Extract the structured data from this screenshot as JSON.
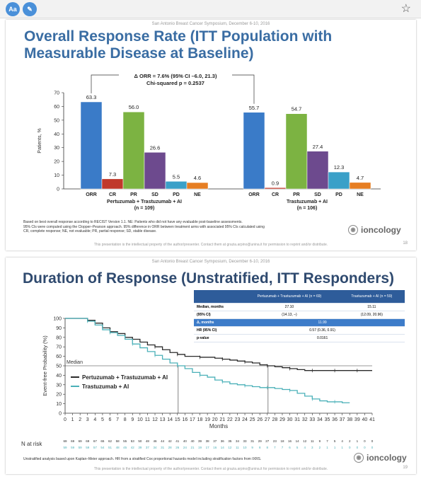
{
  "toolbar": {
    "aa_label": "Aa",
    "pen_icon": "pencil-icon",
    "star_icon": "star-icon"
  },
  "slide1": {
    "header": "San Antonio Breast Cancer Symposium, December 6-10, 2016",
    "title": "Overall Response Rate (ITT Population with Measurable Disease at Baseline)",
    "annotation_line1": "Δ ORR = 7.6% (95% CI –6.0, 21.3)",
    "annotation_line2": "Chi-squared p = 0.2537",
    "footnote_lines": [
      "Based on best overall response according to RECIST Version 1.1. NE: Patients who did not have any evaluable post-baseline assessments.",
      "95% CIs were computed using the Clopper–Pearson approach. 95% difference in ORR between treatment arms with associated 95% CIs calculated using",
      "CR, complete response; NE, not evaluable; PR, partial response; SD, stable disease."
    ],
    "footer": "This presentation is the intellectual property of the author/presenter. Contact them at grazia.arpino@unina.it for permission to reprint and/or distribute.",
    "page_number": "18",
    "watermark": "ioncology"
  },
  "slide2": {
    "header": "San Antonio Breast Cancer Symposium, December 6-10, 2016",
    "title": "Duration of Response (Unstratified, ITT Responders)",
    "table": {
      "col_headers": [
        "",
        "Pertuzumab + Trastuzumab + AI (n = 69)",
        "Trastuzumab + AI (n = 59)"
      ],
      "rows": [
        [
          "Median, months",
          "27.10",
          "15.11"
        ],
        [
          "(95% CI)",
          "(14.13, –)",
          "(12.09, 20.96)"
        ],
        [
          "Δ, months",
          "11.99",
          ""
        ],
        [
          "HR (95% CI)",
          "0.57 (0.36, 0.91)",
          ""
        ],
        [
          "p-value",
          "0.0161",
          ""
        ]
      ]
    },
    "number_at_risk_label": "N at risk",
    "footnote": "Unstratified analysis based upon Kaplan–Meier approach. HR from a stratified Cox proportional hazards model including stratification factors from IXRS.",
    "footer": "This presentation is the intellectual property of the author/presenter. Contact them at grazia.arpino@unina.it for permission to reprint and/or distribute.",
    "page_number": "19",
    "watermark": "ioncology"
  },
  "chart_data": [
    {
      "type": "bar",
      "ylabel": "Patients, %",
      "ylim": [
        0,
        70
      ],
      "yticks": [
        0,
        10,
        20,
        30,
        40,
        50,
        60,
        70
      ],
      "categories": [
        "ORR",
        "CR",
        "PR",
        "SD",
        "PD",
        "NE"
      ],
      "colors": {
        "ORR": "#3a7bc8",
        "CR": "#c0392b",
        "PR": "#7cb342",
        "SD": "#6d4a8e",
        "PD": "#3aa0c8",
        "NE": "#e67e22"
      },
      "groups": [
        {
          "name": "Pertuzumab + Trastuzumab + AI",
          "n_label": "(n = 109)",
          "values": [
            63.3,
            7.3,
            56.0,
            26.6,
            5.5,
            4.6
          ],
          "value_labels": [
            "63.3",
            "7.3",
            "56.0",
            "26.6",
            "5.5",
            "4.6"
          ]
        },
        {
          "name": "Trastuzumab + AI",
          "n_label": "(n = 106)",
          "values": [
            55.7,
            0.9,
            54.7,
            27.4,
            12.3,
            4.7
          ],
          "value_labels": [
            "55.7",
            "0.9",
            "54.7",
            "27.4",
            "12.3",
            "4.7"
          ]
        }
      ]
    },
    {
      "type": "line",
      "xlabel": "Months",
      "ylabel": "Event-free Probability (%)",
      "xlim": [
        0,
        41
      ],
      "ylim": [
        0,
        100
      ],
      "xticks": [
        0,
        1,
        2,
        3,
        4,
        5,
        6,
        7,
        8,
        9,
        10,
        11,
        12,
        13,
        14,
        15,
        16,
        17,
        18,
        19,
        20,
        21,
        22,
        23,
        24,
        25,
        26,
        27,
        28,
        29,
        30,
        31,
        32,
        33,
        34,
        35,
        36,
        37,
        38,
        39,
        40,
        41
      ],
      "yticks": [
        0,
        10,
        20,
        30,
        40,
        50,
        60,
        70,
        80,
        90,
        100
      ],
      "median_label": "Median",
      "median_y": 50,
      "series": [
        {
          "name": "Pertuzumab + Trastuzumab + AI",
          "color": "#2b2b2b",
          "median_x": 27.1,
          "points": [
            [
              0,
              100
            ],
            [
              1,
              100
            ],
            [
              2,
              100
            ],
            [
              3,
              98
            ],
            [
              4,
              95
            ],
            [
              5,
              90
            ],
            [
              6,
              86
            ],
            [
              7,
              84
            ],
            [
              8,
              80
            ],
            [
              9,
              78
            ],
            [
              10,
              75
            ],
            [
              11,
              72
            ],
            [
              12,
              70
            ],
            [
              13,
              67
            ],
            [
              14,
              64
            ],
            [
              15,
              62
            ],
            [
              16,
              60
            ],
            [
              17,
              60
            ],
            [
              18,
              59
            ],
            [
              19,
              59
            ],
            [
              20,
              58
            ],
            [
              21,
              57
            ],
            [
              22,
              56
            ],
            [
              23,
              55
            ],
            [
              24,
              54
            ],
            [
              25,
              53
            ],
            [
              26,
              51
            ],
            [
              27,
              50
            ],
            [
              28,
              49
            ],
            [
              29,
              48
            ],
            [
              30,
              47
            ],
            [
              31,
              46
            ],
            [
              32,
              45
            ],
            [
              33,
              45
            ],
            [
              34,
              45
            ],
            [
              35,
              45
            ],
            [
              36,
              45
            ],
            [
              37,
              45
            ],
            [
              38,
              45
            ],
            [
              39,
              45
            ],
            [
              40,
              45
            ],
            [
              41,
              45
            ]
          ]
        },
        {
          "name": "Trastuzumab + AI",
          "color": "#4ab0b8",
          "median_x": 15.1,
          "points": [
            [
              0,
              100
            ],
            [
              1,
              100
            ],
            [
              2,
              100
            ],
            [
              3,
              97
            ],
            [
              4,
              93
            ],
            [
              5,
              88
            ],
            [
              6,
              85
            ],
            [
              7,
              82
            ],
            [
              8,
              78
            ],
            [
              9,
              73
            ],
            [
              10,
              69
            ],
            [
              11,
              65
            ],
            [
              12,
              61
            ],
            [
              13,
              57
            ],
            [
              14,
              53
            ],
            [
              15,
              50
            ],
            [
              16,
              47
            ],
            [
              17,
              43
            ],
            [
              18,
              40
            ],
            [
              19,
              38
            ],
            [
              20,
              35
            ],
            [
              21,
              33
            ],
            [
              22,
              31
            ],
            [
              23,
              30
            ],
            [
              24,
              29
            ],
            [
              25,
              28
            ],
            [
              26,
              27
            ],
            [
              27,
              27
            ],
            [
              28,
              26
            ],
            [
              29,
              25
            ],
            [
              30,
              24
            ],
            [
              31,
              21
            ],
            [
              32,
              18
            ],
            [
              33,
              15
            ],
            [
              34,
              13
            ],
            [
              35,
              12
            ],
            [
              36,
              12
            ],
            [
              37,
              11
            ],
            [
              38,
              11
            ]
          ]
        }
      ],
      "at_risk": [
        {
          "name": "Pertuzumab + Trastuzumab + AI",
          "color": "#2b2b2b",
          "values": [
            69,
            69,
            69,
            69,
            67,
            65,
            62,
            58,
            55,
            53,
            50,
            48,
            46,
            44,
            42,
            41,
            40,
            40,
            39,
            38,
            37,
            36,
            35,
            34,
            33,
            31,
            29,
            27,
            23,
            18,
            16,
            14,
            12,
            11,
            9,
            7,
            5,
            4,
            2,
            1,
            0,
            0
          ]
        },
        {
          "name": "Trastuzumab + AI",
          "color": "#4ab0b8",
          "values": [
            59,
            59,
            59,
            59,
            57,
            54,
            51,
            48,
            45,
            42,
            39,
            37,
            34,
            31,
            28,
            26,
            24,
            21,
            19,
            17,
            16,
            14,
            12,
            11,
            10,
            9,
            8,
            8,
            7,
            7,
            6,
            5,
            4,
            3,
            2,
            1,
            1,
            1,
            0,
            0,
            0,
            0
          ]
        }
      ]
    }
  ]
}
